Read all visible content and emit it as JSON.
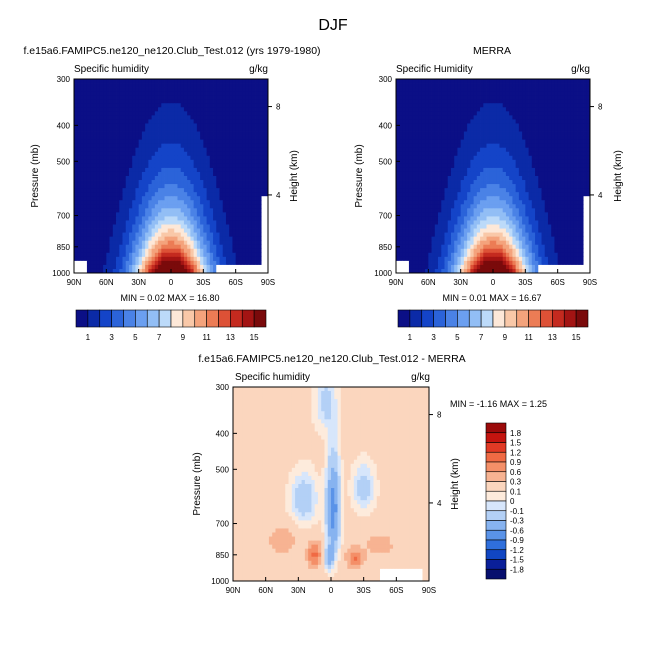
{
  "page": {
    "title": "DJF"
  },
  "chart_data": [
    {
      "type": "heatmap",
      "title": "f.e15a6.FAMIPC5.ne120_ne120.Club_Test.012 (yrs 1979-1980)",
      "subtitle_left": "Specific humidity",
      "subtitle_right": "g/kg",
      "ylabel": "Pressure (mb)",
      "ylabel_right": "Height (km)",
      "x_ticks": [
        "90N",
        "60N",
        "30N",
        "0",
        "30S",
        "60S",
        "90S"
      ],
      "y_ticks": [
        "300",
        "400",
        "500",
        "700",
        "850",
        "1000"
      ],
      "y_right_ticks": [
        "8",
        "4"
      ],
      "stats": "MIN =  0.02  MAX = 16.80",
      "colorbar_labels": [
        "1",
        "3",
        "5",
        "7",
        "9",
        "11",
        "13",
        "15"
      ],
      "field": {
        "ridge_peak_near_equator_g_per_kg": 16.8,
        "min_g_per_kg": 0.02,
        "max_g_per_kg": 16.8
      }
    },
    {
      "type": "heatmap",
      "title": "MERRA",
      "subtitle_left": "Specific Humidity",
      "subtitle_right": "g/kg",
      "ylabel": "Pressure (mb)",
      "ylabel_right": "Height (km)",
      "x_ticks": [
        "90N",
        "60N",
        "30N",
        "0",
        "30S",
        "60S",
        "90S"
      ],
      "y_ticks": [
        "300",
        "400",
        "500",
        "700",
        "850",
        "1000"
      ],
      "y_right_ticks": [
        "8",
        "4"
      ],
      "stats": "MIN =  0.01  MAX = 16.67",
      "colorbar_labels": [
        "1",
        "3",
        "5",
        "7",
        "9",
        "11",
        "13",
        "15"
      ],
      "field": {
        "ridge_peak_near_equator_g_per_kg": 16.67,
        "min_g_per_kg": 0.01,
        "max_g_per_kg": 16.67
      }
    },
    {
      "type": "heatmap",
      "title": "f.e15a6.FAMIPC5.ne120_ne120.Club_Test.012 - MERRA",
      "subtitle_left": "Specific humidity",
      "subtitle_right": "g/kg",
      "ylabel": "Pressure (mb)",
      "ylabel_right": "Height (km)",
      "x_ticks": [
        "90N",
        "60N",
        "30N",
        "0",
        "30S",
        "60S",
        "90S"
      ],
      "y_ticks": [
        "300",
        "400",
        "500",
        "700",
        "850",
        "1000"
      ],
      "y_right_ticks": [
        "8",
        "4"
      ],
      "stats": "MIN = -1.16  MAX =  1.25",
      "colorbar_labels": [
        "1.8",
        "1.5",
        "1.2",
        "0.9",
        "0.6",
        "0.3",
        "0.1",
        "0",
        "-0.1",
        "-0.3",
        "-0.6",
        "-0.9",
        "-1.2",
        "-1.5",
        "-1.8"
      ],
      "field": {
        "min_g_per_kg": -1.16,
        "max_g_per_kg": 1.25
      }
    }
  ],
  "colors": {
    "abs_scale": [
      "#0b0f86",
      "#0b2aa7",
      "#1444c8",
      "#2b63d9",
      "#4a82e6",
      "#6b9ff0",
      "#92bef5",
      "#bcdaf9",
      "#fde8d8",
      "#f9c8a8",
      "#f4a37c",
      "#ec7c55",
      "#dd5136",
      "#c42a1f",
      "#a31413",
      "#7a0a0b"
    ],
    "diff_scale": [
      "#9b0a0a",
      "#c4140f",
      "#e13a25",
      "#f06a44",
      "#f48f68",
      "#f7b392",
      "#fbd6be",
      "#fdebdc",
      "#d7e6fb",
      "#b3d0f6",
      "#87b3f0",
      "#5a93e8",
      "#2f6fdc",
      "#1146c3",
      "#0a1f99",
      "#070f6e"
    ],
    "missing": "#ffffff",
    "frame": "#000000"
  }
}
